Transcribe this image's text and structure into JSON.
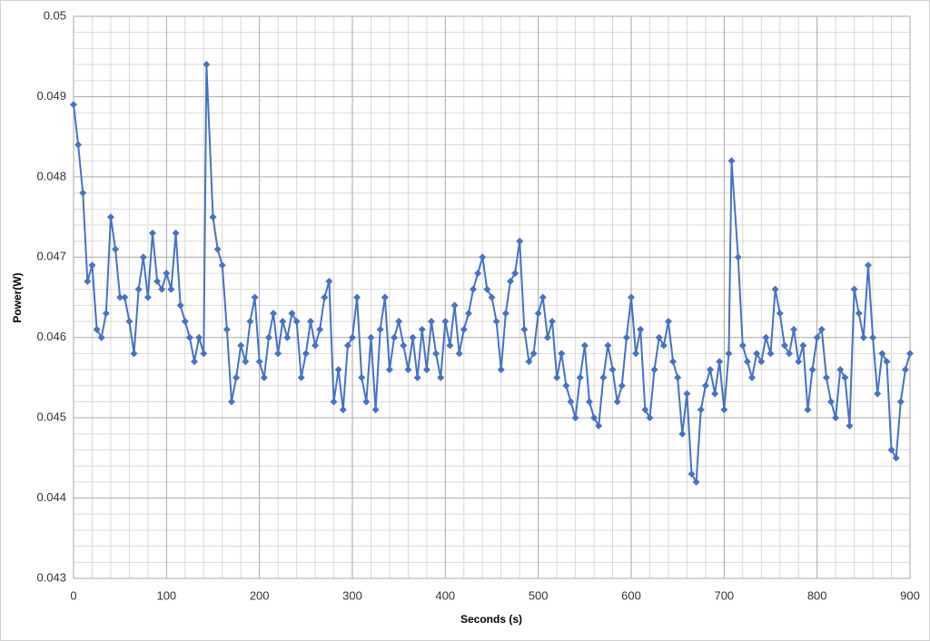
{
  "chart_data": {
    "type": "line",
    "x_label": "Seconds (s)",
    "y_label": "Power(W)",
    "x": [
      0,
      5,
      10,
      15,
      20,
      25,
      30,
      35,
      40,
      45,
      50,
      55,
      60,
      65,
      70,
      75,
      80,
      85,
      90,
      95,
      100,
      105,
      110,
      115,
      120,
      125,
      130,
      135,
      140,
      143,
      150,
      155,
      160,
      165,
      170,
      175,
      180,
      185,
      190,
      195,
      200,
      205,
      210,
      215,
      220,
      225,
      230,
      235,
      240,
      245,
      250,
      255,
      260,
      265,
      270,
      275,
      280,
      285,
      290,
      295,
      300,
      305,
      310,
      315,
      320,
      325,
      330,
      335,
      340,
      345,
      350,
      355,
      360,
      365,
      370,
      375,
      380,
      385,
      390,
      395,
      400,
      405,
      410,
      415,
      420,
      425,
      430,
      435,
      440,
      445,
      450,
      455,
      460,
      465,
      470,
      475,
      480,
      485,
      490,
      495,
      500,
      505,
      510,
      515,
      520,
      525,
      530,
      535,
      540,
      545,
      550,
      555,
      560,
      565,
      570,
      575,
      580,
      585,
      590,
      595,
      600,
      605,
      610,
      615,
      620,
      625,
      630,
      635,
      640,
      645,
      650,
      655,
      660,
      665,
      670,
      675,
      680,
      685,
      690,
      695,
      700,
      705,
      708,
      715,
      720,
      725,
      730,
      735,
      740,
      745,
      750,
      755,
      760,
      765,
      770,
      775,
      780,
      785,
      790,
      795,
      800,
      805,
      810,
      815,
      820,
      825,
      830,
      835,
      840,
      845,
      850,
      855,
      860,
      865,
      870,
      875,
      880,
      885,
      890,
      895,
      900
    ],
    "series": [
      {
        "name": "Power",
        "color": "#4472c4",
        "values": [
          0.0489,
          0.0484,
          0.0478,
          0.0467,
          0.0469,
          0.0461,
          0.046,
          0.0463,
          0.0475,
          0.0471,
          0.0465,
          0.0465,
          0.0462,
          0.0458,
          0.0466,
          0.047,
          0.0465,
          0.0473,
          0.0467,
          0.0466,
          0.0468,
          0.0466,
          0.0473,
          0.0464,
          0.0462,
          0.046,
          0.0457,
          0.046,
          0.0458,
          0.0494,
          0.0475,
          0.0471,
          0.0469,
          0.0461,
          0.0452,
          0.0455,
          0.0459,
          0.0457,
          0.0462,
          0.0465,
          0.0457,
          0.0455,
          0.046,
          0.0463,
          0.0458,
          0.0462,
          0.046,
          0.0463,
          0.0462,
          0.0455,
          0.0458,
          0.0462,
          0.0459,
          0.0461,
          0.0465,
          0.0467,
          0.0452,
          0.0456,
          0.0451,
          0.0459,
          0.046,
          0.0465,
          0.0455,
          0.0452,
          0.046,
          0.0451,
          0.0461,
          0.0465,
          0.0456,
          0.046,
          0.0462,
          0.0459,
          0.0456,
          0.046,
          0.0455,
          0.0461,
          0.0456,
          0.0462,
          0.0458,
          0.0455,
          0.0462,
          0.0459,
          0.0464,
          0.0458,
          0.0461,
          0.0463,
          0.0466,
          0.0468,
          0.047,
          0.0466,
          0.0465,
          0.0462,
          0.0456,
          0.0463,
          0.0467,
          0.0468,
          0.0472,
          0.0461,
          0.0457,
          0.0458,
          0.0463,
          0.0465,
          0.046,
          0.0462,
          0.0455,
          0.0458,
          0.0454,
          0.0452,
          0.045,
          0.0455,
          0.0459,
          0.0452,
          0.045,
          0.0449,
          0.0455,
          0.0459,
          0.0456,
          0.0452,
          0.0454,
          0.046,
          0.0465,
          0.0458,
          0.0461,
          0.0451,
          0.045,
          0.0456,
          0.046,
          0.0459,
          0.0462,
          0.0457,
          0.0455,
          0.0448,
          0.0453,
          0.0443,
          0.0442,
          0.0451,
          0.0454,
          0.0456,
          0.0453,
          0.0457,
          0.0451,
          0.0458,
          0.0482,
          0.047,
          0.0459,
          0.0457,
          0.0455,
          0.0458,
          0.0457,
          0.046,
          0.0458,
          0.0466,
          0.0463,
          0.0459,
          0.0458,
          0.0461,
          0.0457,
          0.0459,
          0.0451,
          0.0456,
          0.046,
          0.0461,
          0.0455,
          0.0452,
          0.045,
          0.0456,
          0.0455,
          0.0449,
          0.0466,
          0.0463,
          0.046,
          0.0469,
          0.046,
          0.0453,
          0.0458,
          0.0457,
          0.0446,
          0.0445,
          0.0452,
          0.0456,
          0.0458
        ]
      }
    ],
    "xlim": [
      0,
      900
    ],
    "ylim": [
      0.043,
      0.05
    ],
    "xticks": [
      0,
      100,
      200,
      300,
      400,
      500,
      600,
      700,
      800,
      900
    ],
    "yticks": [
      0.043,
      0.044,
      0.045,
      0.046,
      0.047,
      0.048,
      0.049,
      0.05
    ],
    "x_minor_ticks": [
      20,
      40,
      60,
      80,
      120,
      140,
      160,
      180,
      220,
      240,
      260,
      280,
      320,
      340,
      360,
      380,
      420,
      440,
      460,
      480,
      520,
      540,
      560,
      580,
      620,
      640,
      660,
      680,
      720,
      740,
      760,
      780,
      820,
      840,
      860,
      880
    ],
    "y_minor_ticks": [
      0.0432,
      0.0434,
      0.0436,
      0.0438,
      0.0442,
      0.0444,
      0.0446,
      0.0448,
      0.0452,
      0.0454,
      0.0456,
      0.0458,
      0.0462,
      0.0464,
      0.0466,
      0.0468,
      0.0472,
      0.0474,
      0.0476,
      0.0478,
      0.0482,
      0.0484,
      0.0486,
      0.0488,
      0.0492,
      0.0494,
      0.0496,
      0.0498
    ],
    "grid": true,
    "marker": "diamond"
  }
}
